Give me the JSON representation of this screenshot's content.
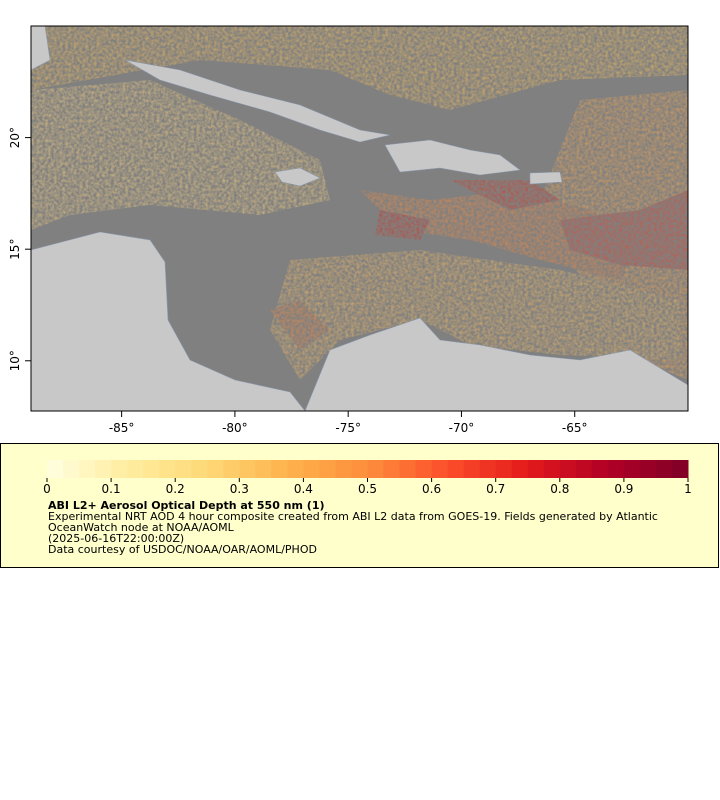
{
  "map": {
    "xlim": [
      -89,
      -60
    ],
    "ylim": [
      7.75,
      25
    ],
    "xticks": [
      {
        "value": -85,
        "label": "-85°"
      },
      {
        "value": -80,
        "label": "-80°"
      },
      {
        "value": -75,
        "label": "-75°"
      },
      {
        "value": -70,
        "label": "-70°"
      },
      {
        "value": -65,
        "label": "-65°"
      }
    ],
    "yticks": [
      {
        "value": 10,
        "label": "10°"
      },
      {
        "value": 15,
        "label": "15°"
      },
      {
        "value": 20,
        "label": "20°"
      }
    ]
  },
  "colorbar": {
    "range": [
      0,
      1
    ],
    "ticks": [
      0,
      0.1,
      0.2,
      0.3,
      0.4,
      0.5,
      0.6,
      0.7,
      0.8,
      0.9,
      1
    ],
    "colors": [
      "#ffffe0",
      "#ffeda0",
      "#fed976",
      "#feb24c",
      "#fd8d3c",
      "#fc4e2a",
      "#e31a1c",
      "#b10026",
      "#800026"
    ]
  },
  "legend": {
    "title": "ABI L2+ Aerosol Optical Depth at 550 nm (1)",
    "lines": [
      "Experimental NRT AOD 4 hour composite created from ABI L2 data from GOES-19. Fields generated by Atlantic OceanWatch node at NOAA/AOML",
      "(2025-06-16T22:00:00Z)",
      "Data courtesy of USDOC/NOAA/OAR/AOML/PHOD"
    ]
  }
}
